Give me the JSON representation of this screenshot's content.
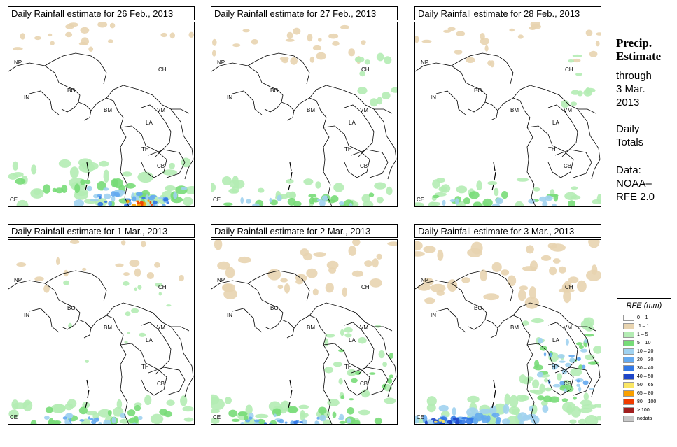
{
  "panels": [
    {
      "title": "Daily Rainfall estimate for  26 Feb., 2013",
      "intensity": "heavy-south"
    },
    {
      "title": "Daily Rainfall estimate for  27 Feb., 2013",
      "intensity": "light-south"
    },
    {
      "title": "Daily Rainfall estimate for  28 Feb., 2013",
      "intensity": "light-south"
    },
    {
      "title": "Daily Rainfall estimate for  1 Mar., 2013",
      "intensity": "moderate-south"
    },
    {
      "title": "Daily Rainfall estimate for  2 Mar., 2013",
      "intensity": "moderate-south-east"
    },
    {
      "title": "Daily Rainfall estimate for  3 Mar., 2013",
      "intensity": "heavy-east"
    }
  ],
  "country_labels": [
    "NP",
    "CH",
    "IN",
    "BG",
    "BM",
    "VM",
    "LA",
    "TH",
    "CB",
    "CE"
  ],
  "side": {
    "title_line1": "Precip.",
    "title_line2": "Estimate",
    "through": "through",
    "date_line1": "3 Mar.",
    "date_line2": "2013",
    "daily_line1": "Daily",
    "daily_line2": "Totals",
    "data_line1": "Data:",
    "data_line2": "NOAA–",
    "data_line3": "RFE 2.0"
  },
  "legend": {
    "title": "RFE (mm)",
    "items": [
      {
        "label": "0 – 1",
        "color": "#ffffff"
      },
      {
        "label": ".1 – 1",
        "color": "#e8d4b0"
      },
      {
        "label": "1 – 5",
        "color": "#b4ecb4"
      },
      {
        "label": "5 – 10",
        "color": "#78dc78"
      },
      {
        "label": "10 – 20",
        "color": "#a0d2f0"
      },
      {
        "label": "20 – 30",
        "color": "#64aaf0"
      },
      {
        "label": "30 – 40",
        "color": "#3278e6"
      },
      {
        "label": "40 – 50",
        "color": "#1e46c8"
      },
      {
        "label": "50 – 65",
        "color": "#fae664"
      },
      {
        "label": "65 – 80",
        "color": "#faa000"
      },
      {
        "label": "80 – 100",
        "color": "#f03c00"
      },
      {
        "label": "> 100",
        "color": "#a01e1e"
      },
      {
        "label": "nodata",
        "color": "#c8c8c8"
      }
    ]
  }
}
